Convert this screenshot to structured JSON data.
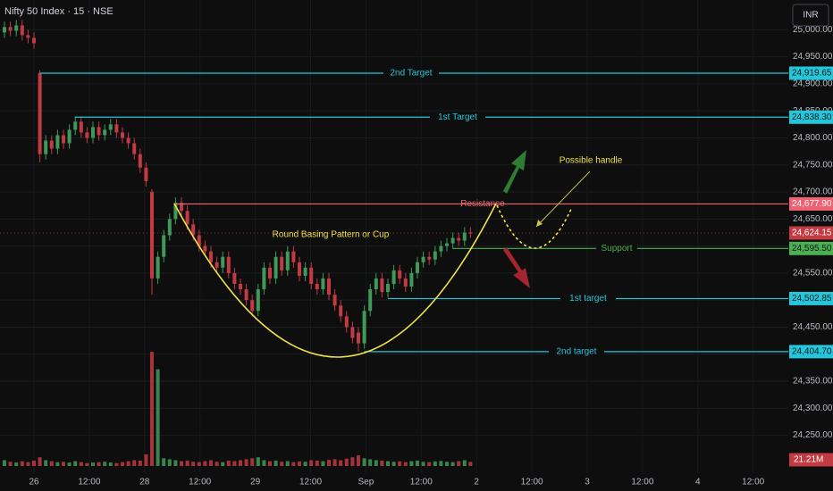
{
  "chart_data": {
    "type": "candlestick",
    "title": "Nifty 50 Index · 15 · NSE",
    "currency": "INR",
    "pattern_label": "Round Basing Pattern or Cup",
    "handle_label": "Possible handle",
    "up_color": "#3f9a58",
    "down_color": "#c23a42",
    "categories": [
      "26",
      "12:00",
      "28",
      "12:00",
      "29",
      "12:00",
      "Sep",
      "12:00",
      "2",
      "12:00",
      "3",
      "12:00",
      "4",
      "12:00"
    ],
    "open": [
      24995,
      25005,
      24998,
      25008,
      24990,
      24985,
      24920,
      24770,
      24795,
      24780,
      24805,
      24790,
      24815,
      24830,
      24810,
      24800,
      24820,
      24805,
      24815,
      24825,
      24810,
      24800,
      24790,
      24770,
      24745,
      24700,
      24540,
      24580,
      24620,
      24650,
      24680,
      24665,
      24640,
      24620,
      24600,
      24590,
      24570,
      24560,
      24580,
      24550,
      24530,
      24520,
      24500,
      24480,
      24520,
      24560,
      24540,
      24580,
      24555,
      24590,
      24570,
      24545,
      24560,
      24530,
      24520,
      24540,
      24510,
      24490,
      24470,
      24450,
      24440,
      24420,
      24480,
      24520,
      24540,
      24515,
      24530,
      24555,
      24540,
      24525,
      24550,
      24570,
      24580,
      24575,
      24590,
      24600,
      24605,
      24615,
      24610,
      24625
    ],
    "high": [
      25015,
      25015,
      25018,
      25018,
      25000,
      24995,
      24925,
      24805,
      24805,
      24815,
      24815,
      24825,
      24840,
      24840,
      24820,
      24830,
      24830,
      24825,
      24835,
      24835,
      24820,
      24810,
      24800,
      24780,
      24755,
      24705,
      24590,
      24630,
      24660,
      24690,
      24690,
      24675,
      24650,
      24630,
      24610,
      24600,
      24580,
      24590,
      24590,
      24560,
      24540,
      24530,
      24510,
      24530,
      24570,
      24570,
      24590,
      24590,
      24600,
      24600,
      24580,
      24570,
      24570,
      24540,
      24550,
      24550,
      24520,
      24500,
      24480,
      24460,
      24450,
      24490,
      24530,
      24550,
      24550,
      24540,
      24565,
      24565,
      24550,
      24560,
      24580,
      24590,
      24590,
      24600,
      24610,
      24615,
      24625,
      24625,
      24635,
      24635
    ],
    "low": [
      24985,
      24988,
      24988,
      24980,
      24975,
      24965,
      24755,
      24760,
      24770,
      24770,
      24780,
      24780,
      24805,
      24800,
      24790,
      24790,
      24795,
      24795,
      24805,
      24800,
      24790,
      24780,
      24760,
      24735,
      24710,
      24510,
      24530,
      24570,
      24610,
      24640,
      24655,
      24630,
      24610,
      24590,
      24580,
      24560,
      24550,
      24550,
      24540,
      24520,
      24510,
      24490,
      24470,
      24470,
      24510,
      24530,
      24530,
      24545,
      24545,
      24560,
      24535,
      24535,
      24520,
      24510,
      24510,
      24500,
      24480,
      24460,
      24440,
      24420,
      24405,
      24410,
      24470,
      24510,
      24505,
      24505,
      24520,
      24530,
      24515,
      24515,
      24540,
      24560,
      24565,
      24565,
      24580,
      24590,
      24595,
      24600,
      24600,
      24615
    ],
    "close": [
      25005,
      24998,
      25008,
      24990,
      24985,
      24975,
      24770,
      24795,
      24780,
      24805,
      24790,
      24815,
      24830,
      24810,
      24800,
      24820,
      24805,
      24815,
      24825,
      24810,
      24800,
      24790,
      24770,
      24745,
      24720,
      24540,
      24580,
      24620,
      24650,
      24680,
      24665,
      24640,
      24620,
      24600,
      24590,
      24570,
      24560,
      24580,
      24550,
      24530,
      24520,
      24500,
      24480,
      24520,
      24560,
      24540,
      24580,
      24555,
      24590,
      24570,
      24545,
      24560,
      24530,
      24520,
      24540,
      24510,
      24490,
      24470,
      24450,
      24430,
      24420,
      24480,
      24520,
      24540,
      24515,
      24530,
      24555,
      24540,
      24525,
      24550,
      24570,
      24580,
      24575,
      24590,
      24600,
      24605,
      24615,
      24610,
      24625,
      24624.15
    ],
    "volume": [
      30,
      22,
      18,
      25,
      20,
      28,
      45,
      30,
      25,
      20,
      22,
      18,
      25,
      20,
      15,
      18,
      20,
      22,
      18,
      15,
      20,
      25,
      30,
      28,
      60,
      590,
      500,
      40,
      35,
      30,
      25,
      28,
      22,
      20,
      25,
      30,
      22,
      20,
      28,
      25,
      30,
      35,
      40,
      45,
      30,
      25,
      28,
      22,
      25,
      20,
      24,
      22,
      30,
      28,
      25,
      32,
      35,
      30,
      38,
      45,
      55,
      40,
      35,
      30,
      28,
      25,
      22,
      24,
      20,
      25,
      28,
      22,
      20,
      24,
      26,
      22,
      20,
      25,
      30,
      21.21
    ],
    "volume_ylim": [
      0,
      600
    ],
    "last_price_label": "24,624.15",
    "last_volume_label": "21.21M",
    "ylim": [
      24180,
      25055
    ],
    "yticks": [
      {
        "value": 24250,
        "label": "24,250.00"
      },
      {
        "value": 24300,
        "label": "24,300.00"
      },
      {
        "value": 24350,
        "label": "24,350.00"
      },
      {
        "value": 24400,
        "label": "24,400.00"
      },
      {
        "value": 24450,
        "label": "24,450.00"
      },
      {
        "value": 24500,
        "label": "24,500.00"
      },
      {
        "value": 24550,
        "label": "24,550.00"
      },
      {
        "value": 24600,
        "label": "24,600.00"
      },
      {
        "value": 24650,
        "label": "24,650.00"
      },
      {
        "value": 24700,
        "label": "24,700.00"
      },
      {
        "value": 24750,
        "label": "24,750.00"
      },
      {
        "value": 24800,
        "label": "24,800.00"
      },
      {
        "value": 24850,
        "label": "24,850.00"
      },
      {
        "value": 24900,
        "label": "24,900.00"
      },
      {
        "value": 24950,
        "label": "24,950.00"
      },
      {
        "value": 25000,
        "label": "25,000.00"
      }
    ],
    "grid": true,
    "levels": [
      {
        "name": "2nd Target",
        "value": 24919.65,
        "label": "24,919.65",
        "color": "#26c6da"
      },
      {
        "name": "1st Target",
        "value": 24838.3,
        "label": "24,838.30",
        "color": "#26c6da"
      },
      {
        "name": "Resistance",
        "value": 24677.9,
        "label": "24,677.90",
        "color": "#f06272"
      },
      {
        "name": "Support",
        "value": 24595.5,
        "label": "24,595.50",
        "color": "#4caf50"
      },
      {
        "name": "1st target",
        "value": 24502.85,
        "label": "24,502.85",
        "color": "#26c6da"
      },
      {
        "name": "2nd target",
        "value": 24404.7,
        "label": "24,404.70",
        "color": "#26c6da"
      }
    ]
  }
}
